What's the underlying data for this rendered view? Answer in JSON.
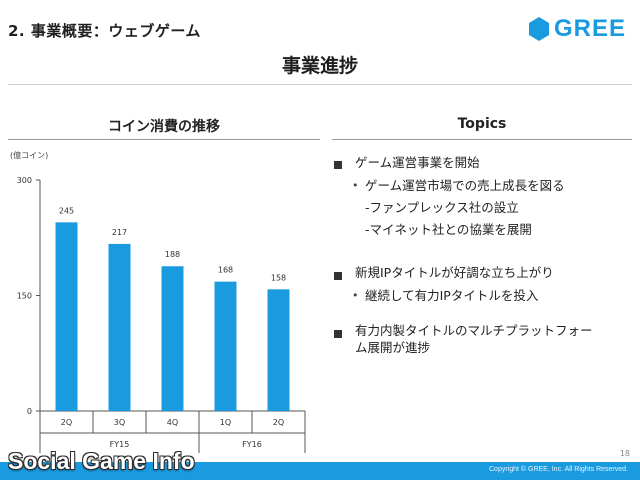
{
  "header": {
    "section_title": "2. 事業概要：ウェブゲーム",
    "brand_name": "GREE",
    "brand_color": "#1a9be0",
    "page_title": "事業進捗"
  },
  "left_panel": {
    "title": "コイン消費の推移",
    "unit_label": "(億コイン)"
  },
  "right_panel": {
    "title": "Topics",
    "items": [
      {
        "text": "ゲーム運営事業を開始",
        "sub": [
          "ゲーム運営市場での売上成長を図る",
          "-ファンプレックス社の設立",
          "-マイネット社との協業を展開"
        ]
      },
      {
        "text": "新規IPタイトルが好調な立ち上がり",
        "sub": [
          "継続して有力IPタイトルを投入"
        ]
      },
      {
        "text": "有力内製タイトルのマルチプラットフォー",
        "text_line2": "ム展開が進捗"
      }
    ]
  },
  "chart_data": {
    "type": "bar",
    "categories": [
      "2Q",
      "3Q",
      "4Q",
      "1Q",
      "2Q"
    ],
    "groups": [
      {
        "label": "FY15",
        "categories": [
          "2Q",
          "3Q",
          "4Q"
        ]
      },
      {
        "label": "FY16",
        "categories": [
          "1Q",
          "2Q"
        ]
      }
    ],
    "values": [
      245,
      217,
      188,
      168,
      158
    ],
    "data_labels": [
      "245",
      "217",
      "188",
      "168",
      "158"
    ],
    "yticks": [
      "0",
      "150",
      "300"
    ],
    "ylim": [
      0,
      300
    ],
    "ylabel": "(億コイン)",
    "bar_color": "#1a9be0",
    "grid": false
  },
  "footer": {
    "page_number": "18",
    "copyright": "Copyright © GREE, Inc. All Rights Reserved.",
    "watermark_a": "Social Game",
    "watermark_b": "Info"
  }
}
